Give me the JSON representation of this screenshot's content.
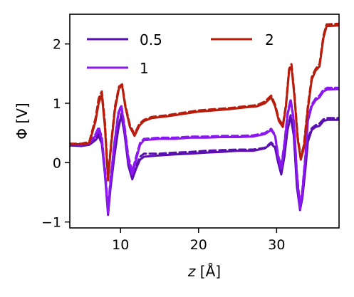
{
  "chart_data": {
    "type": "line",
    "title": "",
    "xlabel_var": "z",
    "xlabel_unit": " [Å]",
    "ylabel": "Φ [V]",
    "xlim": [
      3.5,
      38
    ],
    "ylim": [
      -1.1,
      2.5
    ],
    "xticks": [
      10,
      20,
      30
    ],
    "yticks": [
      -1,
      0,
      1,
      2
    ],
    "ytick_labels": [
      "−1",
      "0",
      "1",
      "2"
    ],
    "grid": false,
    "legend": {
      "location": "upper-left",
      "columns": 2
    },
    "series": [
      {
        "name": "0.5",
        "color": "#5b0fb0",
        "solid": [
          [
            3.5,
            0.29
          ],
          [
            5,
            0.28
          ],
          [
            6,
            0.3
          ],
          [
            6.8,
            0.38
          ],
          [
            7.2,
            0.45
          ],
          [
            7.6,
            0.32
          ],
          [
            8,
            -0.2
          ],
          [
            8.4,
            -0.88
          ],
          [
            8.7,
            -0.45
          ],
          [
            9.2,
            0.1
          ],
          [
            9.7,
            0.55
          ],
          [
            10.1,
            0.8
          ],
          [
            10.5,
            0.5
          ],
          [
            11,
            -0.05
          ],
          [
            11.5,
            -0.28
          ],
          [
            12,
            -0.1
          ],
          [
            12.5,
            0.05
          ],
          [
            13,
            0.1
          ],
          [
            15,
            0.12
          ],
          [
            17,
            0.14
          ],
          [
            19,
            0.15
          ],
          [
            21,
            0.17
          ],
          [
            23,
            0.18
          ],
          [
            25,
            0.2
          ],
          [
            27,
            0.2
          ],
          [
            28.5,
            0.24
          ],
          [
            29.3,
            0.32
          ],
          [
            29.8,
            0.25
          ],
          [
            30.2,
            0.0
          ],
          [
            30.6,
            -0.2
          ],
          [
            31,
            0.1
          ],
          [
            31.4,
            0.55
          ],
          [
            31.8,
            0.78
          ],
          [
            32.2,
            0.45
          ],
          [
            32.6,
            -0.4
          ],
          [
            33,
            -0.8
          ],
          [
            33.3,
            -0.6
          ],
          [
            33.7,
            -0.1
          ],
          [
            34,
            0.35
          ],
          [
            34.5,
            0.55
          ],
          [
            35,
            0.6
          ],
          [
            35.5,
            0.62
          ],
          [
            36,
            0.7
          ],
          [
            36.5,
            0.72
          ],
          [
            38,
            0.72
          ]
        ],
        "dashed": [
          [
            3.5,
            0.3
          ],
          [
            5,
            0.29
          ],
          [
            6,
            0.31
          ],
          [
            6.8,
            0.42
          ],
          [
            7.2,
            0.5
          ],
          [
            7.6,
            0.35
          ],
          [
            8,
            -0.15
          ],
          [
            8.4,
            -0.82
          ],
          [
            8.7,
            -0.42
          ],
          [
            9.2,
            0.12
          ],
          [
            9.7,
            0.58
          ],
          [
            10.1,
            0.82
          ],
          [
            10.5,
            0.52
          ],
          [
            11,
            0.0
          ],
          [
            11.5,
            -0.25
          ],
          [
            12,
            -0.06
          ],
          [
            12.5,
            0.1
          ],
          [
            13,
            0.15
          ],
          [
            15,
            0.15
          ],
          [
            17,
            0.17
          ],
          [
            19,
            0.18
          ],
          [
            21,
            0.2
          ],
          [
            23,
            0.21
          ],
          [
            25,
            0.22
          ],
          [
            27,
            0.22
          ],
          [
            28.5,
            0.25
          ],
          [
            29.3,
            0.34
          ],
          [
            29.8,
            0.27
          ],
          [
            30.2,
            0.02
          ],
          [
            30.6,
            -0.18
          ],
          [
            31,
            0.12
          ],
          [
            31.4,
            0.58
          ],
          [
            31.8,
            0.8
          ],
          [
            32.2,
            0.48
          ],
          [
            32.6,
            -0.36
          ],
          [
            33,
            -0.76
          ],
          [
            33.3,
            -0.57
          ],
          [
            33.7,
            -0.06
          ],
          [
            34,
            0.4
          ],
          [
            34.5,
            0.58
          ],
          [
            35,
            0.63
          ],
          [
            35.5,
            0.66
          ],
          [
            36,
            0.73
          ],
          [
            36.5,
            0.75
          ],
          [
            38,
            0.75
          ]
        ]
      },
      {
        "name": "1",
        "color": "#8a17f0",
        "solid": [
          [
            3.5,
            0.31
          ],
          [
            5,
            0.3
          ],
          [
            6,
            0.32
          ],
          [
            6.8,
            0.45
          ],
          [
            7.2,
            0.55
          ],
          [
            7.6,
            0.4
          ],
          [
            8,
            -0.15
          ],
          [
            8.4,
            -0.85
          ],
          [
            8.7,
            -0.35
          ],
          [
            9.2,
            0.3
          ],
          [
            9.7,
            0.8
          ],
          [
            10.1,
            0.95
          ],
          [
            10.5,
            0.6
          ],
          [
            11,
            0.05
          ],
          [
            11.5,
            -0.2
          ],
          [
            12,
            0.05
          ],
          [
            12.5,
            0.3
          ],
          [
            13,
            0.38
          ],
          [
            15,
            0.4
          ],
          [
            17,
            0.4
          ],
          [
            19,
            0.42
          ],
          [
            21,
            0.42
          ],
          [
            23,
            0.43
          ],
          [
            25,
            0.43
          ],
          [
            27,
            0.44
          ],
          [
            28.5,
            0.48
          ],
          [
            29.3,
            0.55
          ],
          [
            29.8,
            0.45
          ],
          [
            30.2,
            0.1
          ],
          [
            30.6,
            -0.1
          ],
          [
            31,
            0.3
          ],
          [
            31.4,
            0.8
          ],
          [
            31.8,
            1.05
          ],
          [
            32.2,
            0.7
          ],
          [
            32.6,
            -0.2
          ],
          [
            33,
            -0.78
          ],
          [
            33.3,
            -0.5
          ],
          [
            33.7,
            0.1
          ],
          [
            34,
            0.7
          ],
          [
            34.5,
            0.95
          ],
          [
            35,
            1.05
          ],
          [
            35.5,
            1.1
          ],
          [
            36,
            1.2
          ],
          [
            36.5,
            1.23
          ],
          [
            38,
            1.24
          ]
        ],
        "dashed": [
          [
            3.5,
            0.32
          ],
          [
            5,
            0.31
          ],
          [
            6,
            0.33
          ],
          [
            6.8,
            0.48
          ],
          [
            7.2,
            0.6
          ],
          [
            7.6,
            0.43
          ],
          [
            8,
            -0.1
          ],
          [
            8.4,
            -0.8
          ],
          [
            8.7,
            -0.3
          ],
          [
            9.2,
            0.32
          ],
          [
            9.7,
            0.83
          ],
          [
            10.1,
            0.97
          ],
          [
            10.5,
            0.63
          ],
          [
            11,
            0.1
          ],
          [
            11.5,
            -0.15
          ],
          [
            12,
            0.1
          ],
          [
            12.5,
            0.33
          ],
          [
            13,
            0.4
          ],
          [
            15,
            0.42
          ],
          [
            17,
            0.42
          ],
          [
            19,
            0.44
          ],
          [
            21,
            0.44
          ],
          [
            23,
            0.45
          ],
          [
            25,
            0.45
          ],
          [
            27,
            0.46
          ],
          [
            28.5,
            0.5
          ],
          [
            29.3,
            0.57
          ],
          [
            29.8,
            0.47
          ],
          [
            30.2,
            0.12
          ],
          [
            30.6,
            -0.06
          ],
          [
            31,
            0.33
          ],
          [
            31.4,
            0.83
          ],
          [
            31.8,
            1.07
          ],
          [
            32.2,
            0.72
          ],
          [
            32.6,
            -0.16
          ],
          [
            33,
            -0.73
          ],
          [
            33.3,
            -0.46
          ],
          [
            33.7,
            0.14
          ],
          [
            34,
            0.74
          ],
          [
            34.5,
            0.98
          ],
          [
            35,
            1.08
          ],
          [
            35.5,
            1.13
          ],
          [
            36,
            1.23
          ],
          [
            36.5,
            1.26
          ],
          [
            38,
            1.26
          ]
        ]
      },
      {
        "name": "2",
        "color": "#b81c0c",
        "solid": [
          [
            3.5,
            0.31
          ],
          [
            5,
            0.31
          ],
          [
            6,
            0.33
          ],
          [
            6.8,
            0.7
          ],
          [
            7.2,
            1.0
          ],
          [
            7.6,
            1.15
          ],
          [
            8,
            0.6
          ],
          [
            8.4,
            -0.3
          ],
          [
            8.8,
            0.3
          ],
          [
            9.3,
            0.9
          ],
          [
            9.8,
            1.25
          ],
          [
            10.2,
            1.3
          ],
          [
            10.6,
            0.95
          ],
          [
            11.2,
            0.6
          ],
          [
            11.8,
            0.45
          ],
          [
            12.4,
            0.62
          ],
          [
            13,
            0.7
          ],
          [
            14,
            0.75
          ],
          [
            16,
            0.78
          ],
          [
            18,
            0.82
          ],
          [
            20,
            0.86
          ],
          [
            22,
            0.88
          ],
          [
            24,
            0.9
          ],
          [
            26,
            0.93
          ],
          [
            27.5,
            0.95
          ],
          [
            28.5,
            1.0
          ],
          [
            29.3,
            1.1
          ],
          [
            29.8,
            0.95
          ],
          [
            30.3,
            0.7
          ],
          [
            30.8,
            0.6
          ],
          [
            31.2,
            0.95
          ],
          [
            31.6,
            1.55
          ],
          [
            31.9,
            1.62
          ],
          [
            32.3,
            1.1
          ],
          [
            32.7,
            0.4
          ],
          [
            33.1,
            0.05
          ],
          [
            33.5,
            0.25
          ],
          [
            34,
            0.9
          ],
          [
            34.5,
            1.4
          ],
          [
            35,
            1.55
          ],
          [
            35.5,
            1.62
          ],
          [
            36,
            2.1
          ],
          [
            36.4,
            2.3
          ],
          [
            38,
            2.31
          ]
        ],
        "dashed": [
          [
            3.5,
            0.32
          ],
          [
            5,
            0.32
          ],
          [
            6,
            0.35
          ],
          [
            6.8,
            0.75
          ],
          [
            7.2,
            1.08
          ],
          [
            7.6,
            1.2
          ],
          [
            8,
            0.68
          ],
          [
            8.4,
            -0.25
          ],
          [
            8.8,
            0.34
          ],
          [
            9.3,
            0.95
          ],
          [
            9.8,
            1.28
          ],
          [
            10.2,
            1.32
          ],
          [
            10.6,
            0.98
          ],
          [
            11.2,
            0.63
          ],
          [
            11.8,
            0.48
          ],
          [
            12.4,
            0.65
          ],
          [
            13,
            0.72
          ],
          [
            14,
            0.77
          ],
          [
            16,
            0.8
          ],
          [
            18,
            0.84
          ],
          [
            20,
            0.88
          ],
          [
            22,
            0.9
          ],
          [
            24,
            0.92
          ],
          [
            26,
            0.95
          ],
          [
            27.5,
            0.97
          ],
          [
            28.5,
            1.03
          ],
          [
            29.3,
            1.13
          ],
          [
            29.8,
            0.98
          ],
          [
            30.3,
            0.73
          ],
          [
            30.8,
            0.63
          ],
          [
            31.2,
            0.98
          ],
          [
            31.6,
            1.58
          ],
          [
            31.9,
            1.66
          ],
          [
            32.3,
            1.14
          ],
          [
            32.7,
            0.44
          ],
          [
            33.1,
            0.09
          ],
          [
            33.5,
            0.3
          ],
          [
            34,
            0.95
          ],
          [
            34.5,
            1.44
          ],
          [
            35,
            1.58
          ],
          [
            35.5,
            1.66
          ],
          [
            36,
            2.14
          ],
          [
            36.4,
            2.33
          ],
          [
            38,
            2.34
          ]
        ]
      }
    ]
  }
}
